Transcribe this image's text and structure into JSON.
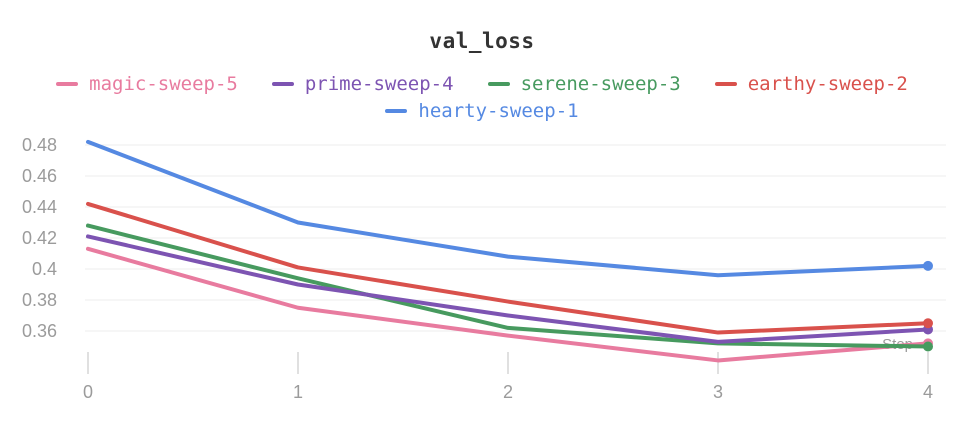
{
  "chart_data": {
    "type": "line",
    "title": "val_loss",
    "xlabel": "Step",
    "ylabel": "",
    "x": [
      0,
      1,
      2,
      3,
      4
    ],
    "x_tick_labels": [
      "0",
      "1",
      "2",
      "3",
      "4"
    ],
    "y_tick_labels": [
      "0.48",
      "0.46",
      "0.44",
      "0.42",
      "0.4",
      "0.38",
      "0.36"
    ],
    "ylim": [
      0.335,
      0.49
    ],
    "grid": "horizontal",
    "legend_position": "top",
    "end_markers": true,
    "series": [
      {
        "name": "magic-sweep-5",
        "color": "#E87B9F",
        "values": [
          0.413,
          0.375,
          0.357,
          0.341,
          0.352
        ]
      },
      {
        "name": "prime-sweep-4",
        "color": "#7D54B2",
        "values": [
          0.421,
          0.39,
          0.37,
          0.353,
          0.361
        ]
      },
      {
        "name": "serene-sweep-3",
        "color": "#479A5F",
        "values": [
          0.428,
          0.394,
          0.362,
          0.352,
          0.35
        ]
      },
      {
        "name": "earthy-sweep-2",
        "color": "#D9514C",
        "values": [
          0.442,
          0.401,
          0.379,
          0.359,
          0.365
        ]
      },
      {
        "name": "hearty-sweep-1",
        "color": "#5589E2",
        "values": [
          0.482,
          0.43,
          0.408,
          0.396,
          0.402
        ]
      }
    ],
    "draw_order": [
      "magic-sweep-5",
      "serene-sweep-3",
      "prime-sweep-4",
      "earthy-sweep-2",
      "hearty-sweep-1"
    ],
    "colors": {
      "gridline": "#ececec",
      "tick_mark": "#e0e0e0",
      "axis_text": "#9b9b9b",
      "title_text": "#333333"
    }
  }
}
